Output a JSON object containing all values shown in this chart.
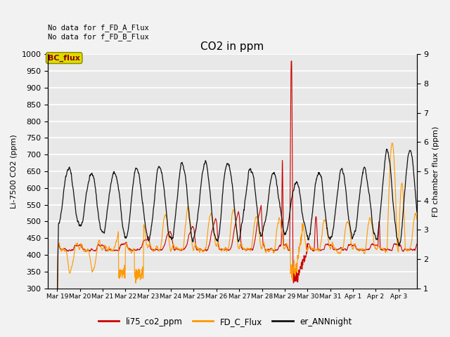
{
  "title": "CO2 in ppm",
  "ylabel_left": "Li-7500 CO2 (ppm)",
  "ylabel_right": "FD chamber flux (ppm)",
  "ylim_left": [
    300,
    1000
  ],
  "ylim_right": [
    1.0,
    9.0
  ],
  "yticks_left": [
    300,
    350,
    400,
    450,
    500,
    550,
    600,
    650,
    700,
    750,
    800,
    850,
    900,
    950,
    1000
  ],
  "yticks_right": [
    1.0,
    2.0,
    3.0,
    4.0,
    5.0,
    6.0,
    7.0,
    8.0,
    9.0
  ],
  "annotation_text": "No data for f_FD_A_Flux\nNo data for f_FD_B_Flux",
  "bc_flux_label": "BC_flux",
  "legend_labels": [
    "li75_co2_ppm",
    "FD_C_Flux",
    "er_ANNnight"
  ],
  "legend_colors": [
    "#cc0000",
    "#ff9900",
    "#111111"
  ],
  "line_colors": {
    "li75": "#cc0000",
    "FD_C": "#ff9900",
    "er_ANN": "#111111"
  },
  "bg_color": "#e8e8e8",
  "grid_color": "#ffffff",
  "fig_bg": "#f2f2f2",
  "x_tick_labels": [
    "Mar 19",
    "Mar 20",
    "Mar 21",
    "Mar 22",
    "Mar 23",
    "Mar 24",
    "Mar 25",
    "Mar 26",
    "Mar 27",
    "Mar 28",
    "Mar 29",
    "Mar 30",
    "Mar 31",
    "Apr 1",
    "Apr 2",
    "Apr 3"
  ]
}
